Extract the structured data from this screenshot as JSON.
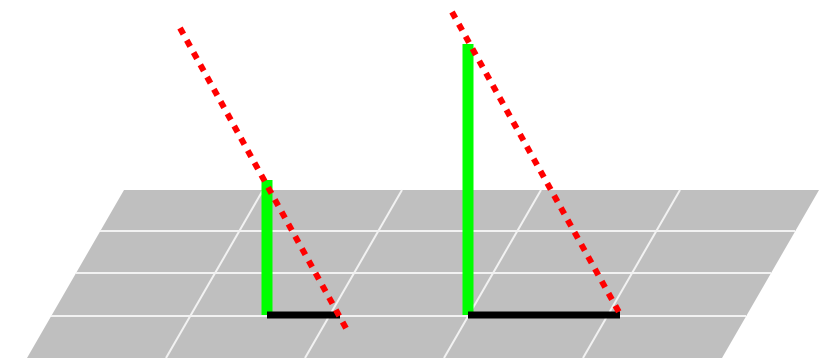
{
  "colors": {
    "background": "#ffffff",
    "ground": "#bfbfbf",
    "grid_lines": "#f2f2f2",
    "pole": "#00ff00",
    "shadow": "#000000",
    "sun_ray": "#ff0000"
  },
  "objects": [
    {
      "name": "short-pole",
      "relative_pole_height": 1,
      "relative_shadow_length": 0.55
    },
    {
      "name": "tall-pole",
      "relative_pole_height": 2,
      "relative_shadow_length": 1.1
    }
  ]
}
